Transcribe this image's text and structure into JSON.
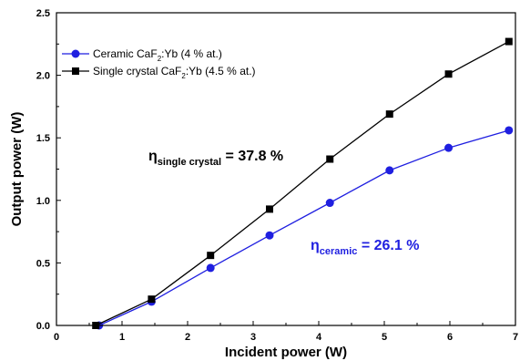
{
  "chart_data": {
    "type": "line",
    "xlabel": "Incident power (W)",
    "ylabel": "Output power (W)",
    "xlim": [
      0,
      7
    ],
    "ylim": [
      0,
      2.5
    ],
    "x_ticks": [
      "0",
      "1",
      "2",
      "3",
      "4",
      "5",
      "6",
      "7"
    ],
    "y_ticks": [
      "0.0",
      "0.5",
      "1.0",
      "1.5",
      "2.0",
      "2.5"
    ],
    "grid": false,
    "legend_position": "top-left",
    "series": [
      {
        "name_parts": [
          "Ceramic CaF",
          "2",
          ":Yb (4 % at.)"
        ],
        "color": "#1f1fe0",
        "marker": "circle",
        "x": [
          0.65,
          1.45,
          2.35,
          3.25,
          4.17,
          5.08,
          5.98,
          6.9
        ],
        "y": [
          0.0,
          0.19,
          0.46,
          0.72,
          0.98,
          1.24,
          1.42,
          1.56
        ]
      },
      {
        "name_parts": [
          "Single crystal CaF",
          "2",
          ":Yb (4.5 % at.)"
        ],
        "color": "#000000",
        "marker": "square",
        "x": [
          0.6,
          1.45,
          2.35,
          3.25,
          4.17,
          5.08,
          5.98,
          6.9
        ],
        "y": [
          0.0,
          0.21,
          0.56,
          0.93,
          1.33,
          1.69,
          2.01,
          2.27
        ]
      }
    ],
    "annotations": [
      {
        "symbol": "η",
        "sub": "single crystal",
        "value": " = 37.8 %",
        "color": "#000000"
      },
      {
        "symbol": "η",
        "sub": "ceramic",
        "value": " = 26.1 %",
        "color": "#1f1fe0"
      }
    ]
  }
}
